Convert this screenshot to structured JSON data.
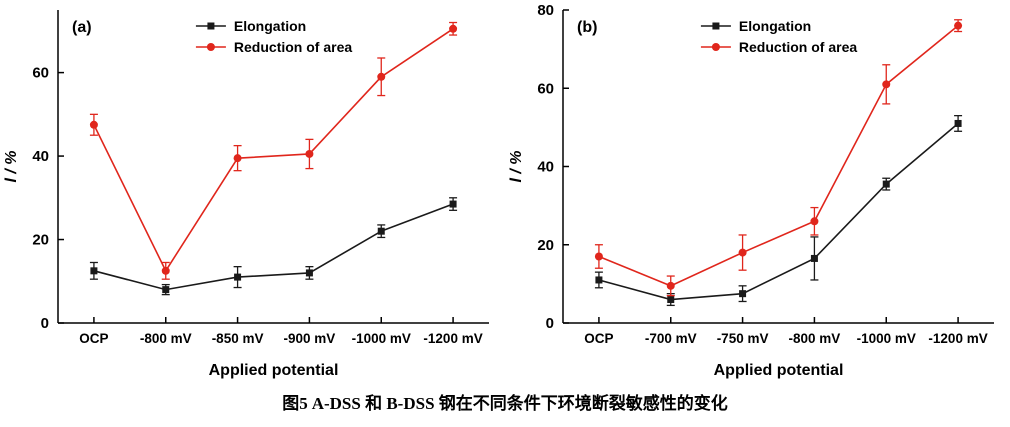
{
  "caption": {
    "prefix": "图5",
    "text": "A-DSS 和 B-DSS 钢在不同条件下环境断裂敏感性的变化"
  },
  "chart_data": [
    {
      "type": "line",
      "panel_label": "(a)",
      "categories": [
        "OCP",
        "-800 mV",
        "-850 mV",
        "-900 mV",
        "-1000 mV",
        "-1200 mV"
      ],
      "series": [
        {
          "name": "Elongation",
          "color": "#1a1a1a",
          "marker": "square",
          "values": [
            12.5,
            8,
            11,
            12,
            22,
            28.5
          ],
          "errors": [
            2,
            1.2,
            2.5,
            1.5,
            1.5,
            1.5
          ]
        },
        {
          "name": "Reduction of area",
          "color": "#e0261c",
          "marker": "circle",
          "values": [
            47.5,
            12.5,
            39.5,
            40.5,
            59,
            70.5
          ],
          "errors": [
            2.5,
            2,
            3,
            3.5,
            4.5,
            1.5
          ]
        }
      ],
      "xlabel": "Applied potential",
      "ylabel": "l / %",
      "ylim": [
        0,
        75
      ],
      "yticks": [
        0,
        20,
        40,
        60
      ],
      "legend_position": "top",
      "grid": false
    },
    {
      "type": "line",
      "panel_label": "(b)",
      "categories": [
        "OCP",
        "-700 mV",
        "-750 mV",
        "-800 mV",
        "-1000 mV",
        "-1200 mV"
      ],
      "series": [
        {
          "name": "Elongation",
          "color": "#1a1a1a",
          "marker": "square",
          "values": [
            11,
            6,
            7.5,
            16.5,
            35.5,
            51
          ],
          "errors": [
            2,
            1.5,
            2,
            5.5,
            1.5,
            2
          ]
        },
        {
          "name": "Reduction of area",
          "color": "#e0261c",
          "marker": "circle",
          "values": [
            17,
            9.5,
            18,
            26,
            61,
            76
          ],
          "errors": [
            3,
            2.5,
            4.5,
            3.5,
            5,
            1.5
          ]
        }
      ],
      "xlabel": "Applied potential",
      "ylabel": "l / %",
      "ylim": [
        0,
        80
      ],
      "yticks": [
        0,
        20,
        40,
        60,
        80
      ],
      "legend_position": "top",
      "grid": false
    }
  ]
}
